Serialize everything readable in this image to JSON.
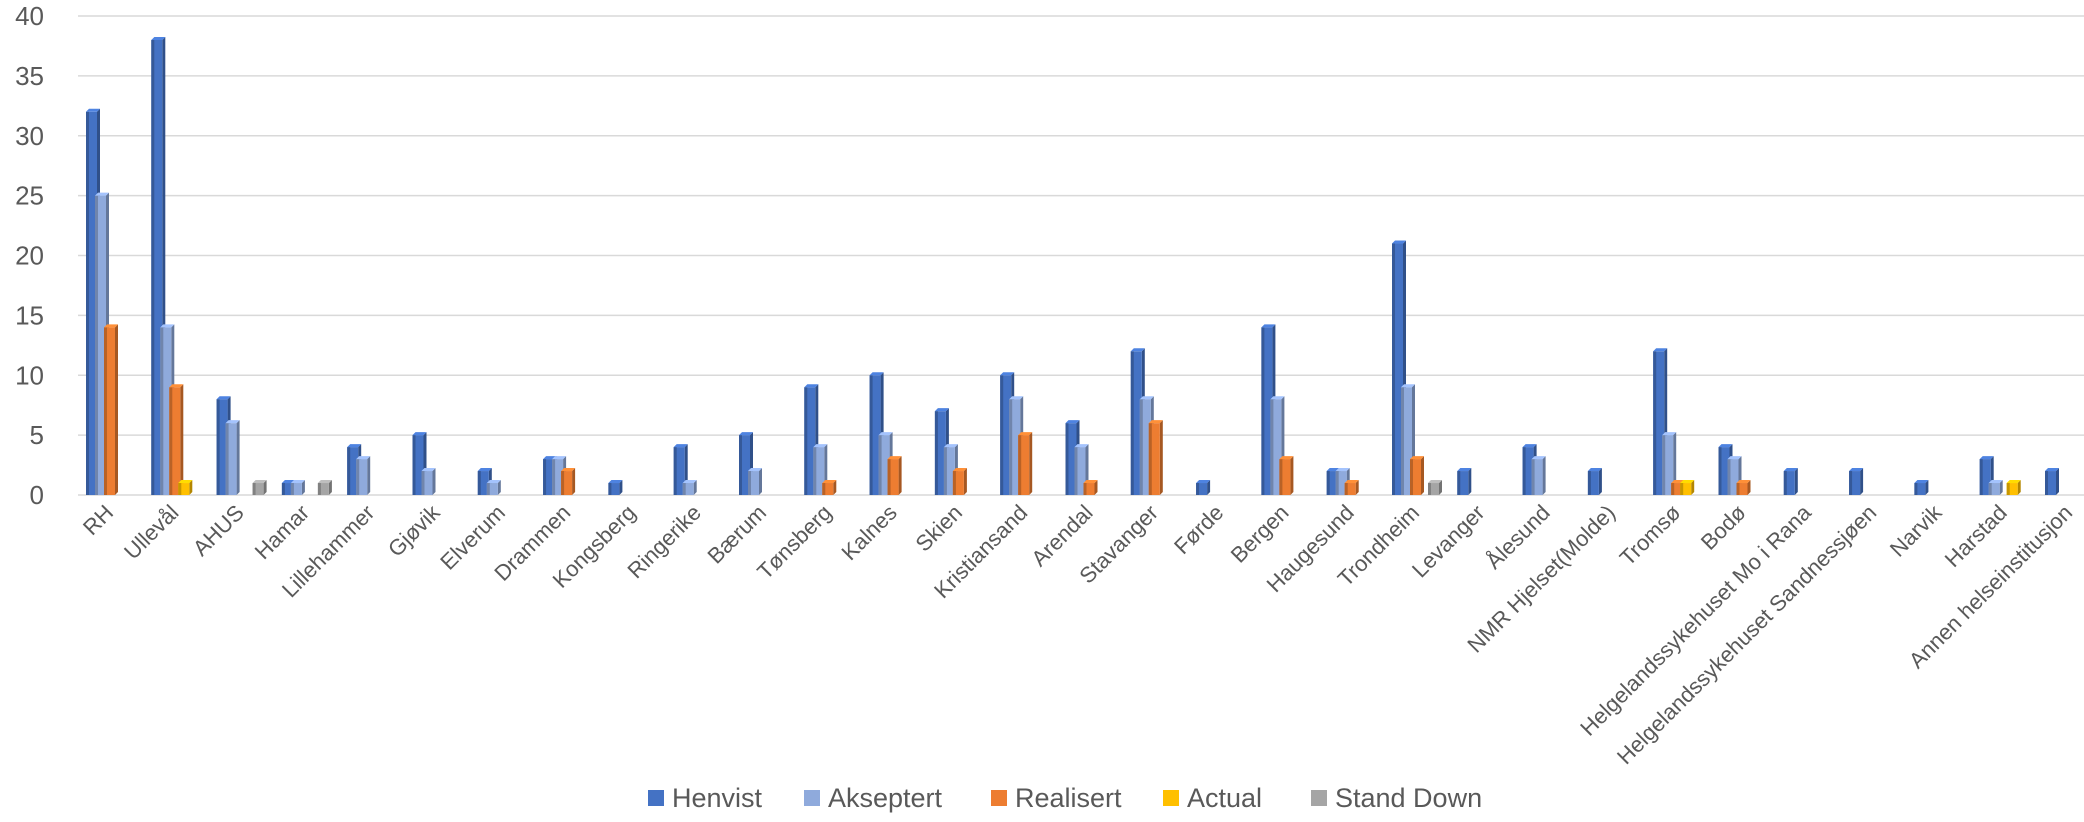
{
  "chart_data": {
    "type": "bar",
    "style": "3d-clustered-column",
    "title": "",
    "xlabel": "",
    "ylabel": "",
    "ylim": [
      0,
      40
    ],
    "yticks": [
      0,
      5,
      10,
      15,
      20,
      25,
      30,
      35,
      40
    ],
    "grid": true,
    "legend_position": "bottom",
    "categories": [
      "RH",
      "Ullevål",
      "AHUS",
      "Hamar",
      "Lillehammer",
      "Gjøvik",
      "Elverum",
      "Drammen",
      "Kongsberg",
      "Ringerike",
      "Bærum",
      "Tønsberg",
      "Kalnes",
      "Skien",
      "Kristiansand",
      "Arendal",
      "Stavanger",
      "Førde",
      "Bergen",
      "Haugesund",
      "Trondheim",
      "Levanger",
      "Ålesund",
      "NMR Hjelset(Molde)",
      "Tromsø",
      "Bodø",
      "Helgelandssykehuset Mo i Rana",
      "Helgelandssykehuset Sandnessjøen",
      "Narvik",
      "Harstad",
      "Annen helseinstitusjon"
    ],
    "series": [
      {
        "name": "Henvist",
        "color": "#4472C4",
        "values": [
          32,
          38,
          8,
          1,
          4,
          5,
          2,
          3,
          1,
          4,
          5,
          9,
          10,
          7,
          10,
          6,
          12,
          1,
          14,
          2,
          21,
          2,
          4,
          2,
          12,
          4,
          2,
          2,
          1,
          3,
          2
        ]
      },
      {
        "name": "Akseptert",
        "color": "#8FAADC",
        "values": [
          25,
          14,
          6,
          1,
          3,
          2,
          1,
          3,
          0,
          1,
          2,
          4,
          5,
          4,
          8,
          4,
          8,
          0,
          8,
          2,
          9,
          0,
          3,
          0,
          5,
          3,
          0,
          0,
          0,
          1,
          0
        ]
      },
      {
        "name": "Realisert",
        "color": "#ED7D31",
        "values": [
          14,
          9,
          0,
          0,
          0,
          0,
          0,
          2,
          0,
          0,
          0,
          1,
          3,
          2,
          5,
          1,
          6,
          0,
          3,
          1,
          3,
          0,
          0,
          0,
          1,
          1,
          0,
          0,
          0,
          0,
          0
        ]
      },
      {
        "name": "Actual",
        "color": "#FFC000",
        "values": [
          0,
          1,
          0,
          0,
          0,
          0,
          0,
          0,
          0,
          0,
          0,
          0,
          0,
          0,
          0,
          0,
          0,
          0,
          0,
          0,
          0,
          0,
          0,
          0,
          1,
          0,
          0,
          0,
          0,
          1,
          0
        ]
      },
      {
        "name": "Stand Down",
        "color": "#A5A5A5",
        "values": [
          0,
          0,
          1,
          1,
          0,
          0,
          0,
          0,
          0,
          0,
          0,
          0,
          0,
          0,
          0,
          0,
          0,
          0,
          0,
          0,
          1,
          0,
          0,
          0,
          0,
          0,
          0,
          0,
          0,
          0,
          0
        ]
      }
    ]
  }
}
